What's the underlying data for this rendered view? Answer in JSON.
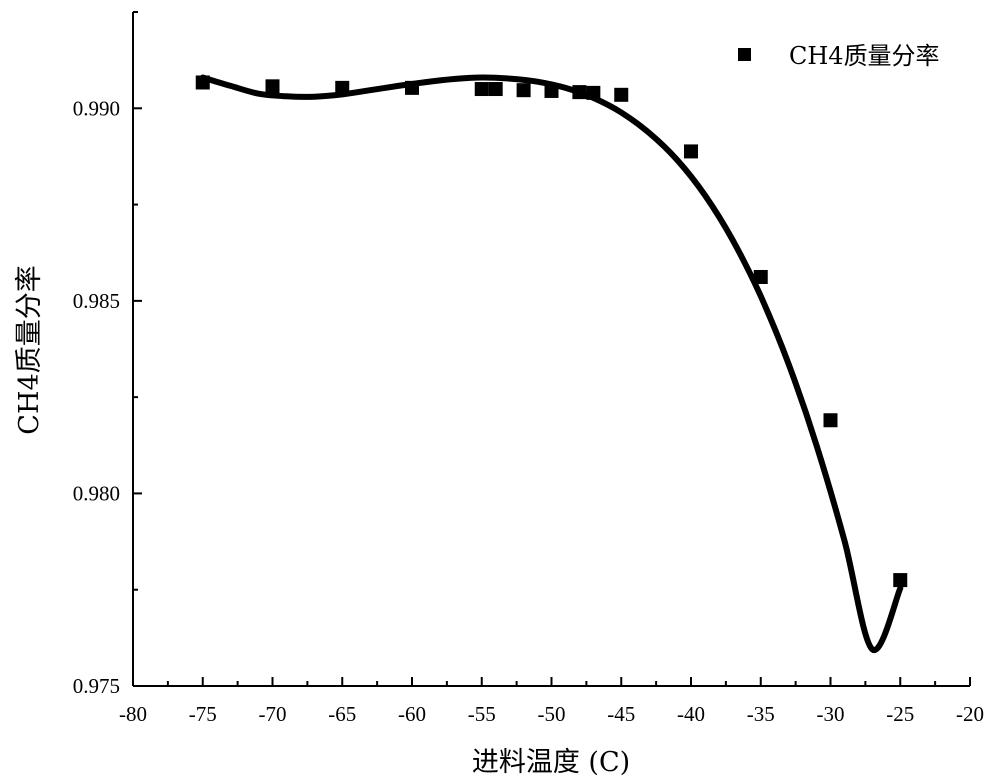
{
  "chart_data": {
    "type": "scatter",
    "xlabel": "进料温度 (C)",
    "ylabel": "CH4质量分率",
    "xlim": [
      -80,
      -20
    ],
    "ylim": [
      0.975,
      0.9925
    ],
    "x_ticks": [
      -80,
      -75,
      -70,
      -65,
      -60,
      -55,
      -50,
      -45,
      -40,
      -35,
      -30,
      -25,
      -20
    ],
    "x_tick_labels": [
      "-80",
      "-75",
      "-70",
      "-65",
      "-60",
      "-55",
      "-50",
      "-45",
      "-40",
      "-35",
      "-30",
      "-25",
      "-20"
    ],
    "y_ticks": [
      0.975,
      0.98,
      0.985,
      0.99
    ],
    "y_tick_labels": [
      "0.975",
      "0.980",
      "0.985",
      "0.990"
    ],
    "grid": false,
    "legend": {
      "position": "top-right",
      "entries": [
        "CH4质量分率"
      ]
    },
    "series": [
      {
        "name": "CH4质量分率",
        "marker": "square",
        "x": [
          -75,
          -70,
          -65,
          -60,
          -55,
          -54,
          -52,
          -50,
          -48,
          -47,
          -45,
          -40,
          -35,
          -30,
          -25
        ],
        "y": [
          0.99067,
          0.99057,
          0.99053,
          0.99053,
          0.9905,
          0.9905,
          0.99047,
          0.99045,
          0.99042,
          0.9904,
          0.99035,
          0.98888,
          0.98562,
          0.9819,
          0.97775
        ]
      }
    ],
    "fit_curve": {
      "style": "solid",
      "x": [
        -75,
        -73,
        -71,
        -69,
        -67,
        -65,
        -63,
        -61,
        -59,
        -57,
        -55,
        -53,
        -51,
        -49,
        -47,
        -45,
        -43,
        -41,
        -39,
        -37,
        -35,
        -33,
        -31,
        -29,
        -27,
        -25
      ],
      "y": [
        0.9908,
        0.99058,
        0.99038,
        0.99031,
        0.9903,
        0.99036,
        0.99047,
        0.99058,
        0.99068,
        0.99076,
        0.9908,
        0.99077,
        0.99069,
        0.99053,
        0.99027,
        0.98989,
        0.98936,
        0.98866,
        0.98774,
        0.98657,
        0.98512,
        0.98336,
        0.98125,
        0.97878,
        0.97595,
        0.97754
      ]
    }
  }
}
